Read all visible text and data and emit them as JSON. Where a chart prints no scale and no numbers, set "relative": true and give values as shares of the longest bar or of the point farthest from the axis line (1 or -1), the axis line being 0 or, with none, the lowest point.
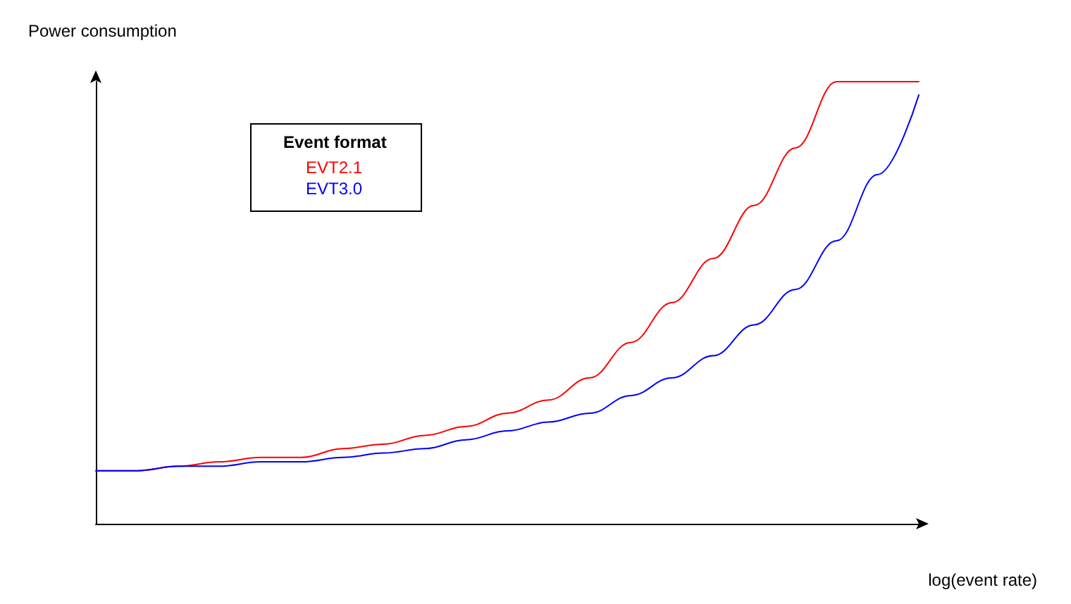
{
  "chart_data": {
    "type": "line",
    "relative": true,
    "xlabel": "log(event rate)",
    "ylabel": "Power consumption",
    "legend_title": "Event format",
    "legend": "top left",
    "grid": false,
    "marker": "none",
    "line_style": "solid",
    "categories": [
      null,
      null,
      null,
      null,
      null,
      null,
      null,
      null,
      null,
      null,
      null,
      null,
      null,
      null,
      null,
      null,
      null,
      null,
      null,
      null,
      null
    ],
    "series": [
      {
        "name": "EVT2.1",
        "color": "#ff0000",
        "values": [
          0.12,
          0.12,
          0.13,
          0.14,
          0.15,
          0.15,
          0.17,
          0.18,
          0.2,
          0.22,
          0.25,
          0.28,
          0.33,
          0.41,
          0.5,
          0.6,
          0.72,
          0.85,
          1,
          1,
          1
        ]
      },
      {
        "name": "EVT3.0",
        "color": "#0000ff",
        "values": [
          0.12,
          0.12,
          0.13,
          0.13,
          0.14,
          0.14,
          0.15,
          0.16,
          0.17,
          0.19,
          0.21,
          0.23,
          0.25,
          0.29,
          0.33,
          0.38,
          0.45,
          0.53,
          0.64,
          0.79,
          0.97
        ]
      }
    ]
  }
}
